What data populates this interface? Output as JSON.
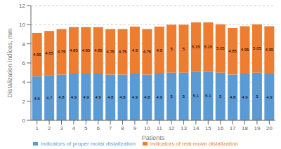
{
  "chart_data": {
    "type": "bar",
    "stacked": true,
    "xlabel": "Patients",
    "ylabel": "Distalization indices, mm",
    "categories": [
      "1",
      "2",
      "3",
      "4",
      "5",
      "6",
      "7",
      "8",
      "9",
      "10",
      "11",
      "12",
      "13",
      "14",
      "15",
      "16",
      "17",
      "18",
      "19",
      "20"
    ],
    "series": [
      {
        "name": "indicators of proper molar distalization",
        "color": "#5B9BD5",
        "values": [
          4.6,
          4.7,
          4.8,
          4.9,
          4.9,
          4.9,
          4.8,
          4.8,
          4.9,
          4.8,
          4.9,
          5.0,
          5.0,
          5.1,
          5.1,
          5.0,
          4.8,
          4.9,
          5.0,
          4.9
        ]
      },
      {
        "name": "indicators of real molar distalization",
        "color": "#ED7D31",
        "values": [
          4.55,
          4.65,
          4.75,
          4.85,
          4.85,
          4.85,
          4.75,
          4.75,
          4.9,
          4.75,
          4.9,
          5.0,
          5.0,
          5.15,
          5.15,
          5.05,
          4.85,
          4.95,
          5.05,
          4.95
        ]
      }
    ],
    "ylim": [
      0,
      12
    ],
    "yticks": [
      0,
      2,
      4,
      6,
      8,
      10,
      12
    ],
    "grid": true,
    "legend": "bottom",
    "data_labels": true
  }
}
